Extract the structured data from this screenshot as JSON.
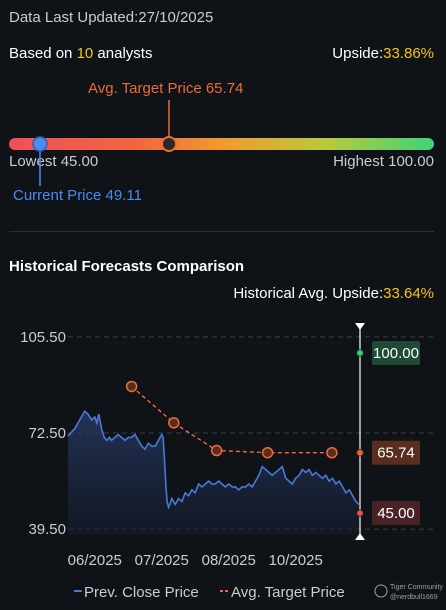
{
  "header": {
    "updated_label": "Data Last Updated:",
    "updated_value": "27/10/2025",
    "based_prefix": "Based on ",
    "analyst_count": "10",
    "based_suffix": " analysts",
    "upside_label": "Upside:",
    "upside_value": "33.86%"
  },
  "range": {
    "avg_target_label": "Avg. Target Price",
    "avg_target_value": "65.74",
    "lowest_label": "Lowest",
    "lowest_value": "45.00",
    "highest_label": "Highest",
    "highest_value": "100.00",
    "current_label": "Current Price",
    "current_value": "49.11",
    "colors": {
      "avg_marker": "#ee6a3a",
      "current_marker": "#4a8cf0"
    }
  },
  "history": {
    "title": "Historical Forecasts Comparison",
    "avg_upside_label": "Historical Avg. Upside:",
    "avg_upside_value": "33.64%"
  },
  "chart_data": {
    "type": "line",
    "title": "Historical Forecasts Comparison",
    "yticks": [
      39.5,
      72.5,
      105.5
    ],
    "ytick_labels": [
      "39.50",
      "72.50",
      "105.50"
    ],
    "ylim": [
      37.5,
      112
    ],
    "xticks": [
      {
        "label": "06/2025",
        "x": 0.0
      },
      {
        "label": "07/2025",
        "x": 1.0
      },
      {
        "label": "08/2025",
        "x": 2.0
      },
      {
        "label": "10/2025",
        "x": 3.0
      }
    ],
    "xlim": [
      -0.4,
      3.96
    ],
    "grid": true,
    "legend": {
      "position": "bottom",
      "entries": [
        "Prev. Close Price",
        "Avg. Target Price"
      ]
    },
    "series": [
      {
        "name": "Prev. Close Price",
        "color": "#4a78d8",
        "x": [
          -0.4,
          -0.3,
          -0.2,
          -0.15,
          -0.1,
          -0.05,
          0.0,
          0.03,
          0.06,
          0.1,
          0.14,
          0.18,
          0.22,
          0.25,
          0.3,
          0.35,
          0.4,
          0.45,
          0.5,
          0.55,
          0.6,
          0.65,
          0.7,
          0.75,
          0.8,
          0.85,
          0.9,
          0.95,
          1.0,
          1.02,
          1.04,
          1.06,
          1.08,
          1.1,
          1.12,
          1.15,
          1.2,
          1.25,
          1.3,
          1.35,
          1.4,
          1.45,
          1.5,
          1.55,
          1.6,
          1.65,
          1.7,
          1.75,
          1.8,
          1.85,
          1.9,
          1.95,
          2.0,
          2.05,
          2.1,
          2.15,
          2.2,
          2.25,
          2.3,
          2.35,
          2.4,
          2.45,
          2.5,
          2.55,
          2.6,
          2.65,
          2.7,
          2.75,
          2.8,
          2.85,
          2.9,
          2.95,
          3.0,
          3.05,
          3.1,
          3.15,
          3.2,
          3.25,
          3.3,
          3.35,
          3.4,
          3.45,
          3.5,
          3.55,
          3.6,
          3.65,
          3.7,
          3.75,
          3.8,
          3.85,
          3.9,
          3.94
        ],
        "values": [
          71.5,
          74,
          78,
          80,
          79,
          77,
          78,
          76,
          79,
          74,
          71,
          70,
          71,
          70,
          71,
          72,
          71,
          70,
          71,
          71,
          72,
          70,
          68,
          67,
          69,
          68,
          68,
          70,
          72,
          71,
          64,
          55,
          49,
          47,
          48,
          50,
          48,
          50,
          49,
          52,
          51,
          53,
          52,
          55,
          54,
          55,
          56,
          55,
          55,
          56,
          55,
          54,
          55,
          54,
          54,
          53,
          54,
          54,
          55,
          54,
          56,
          58,
          61,
          60,
          59,
          58,
          59,
          60,
          61,
          57,
          56,
          55,
          57,
          58,
          60,
          59,
          60,
          58,
          59,
          58,
          57,
          58,
          56,
          57,
          55,
          56,
          54,
          52,
          53,
          51,
          49,
          48
        ]
      },
      {
        "name": "Avg. Target Price",
        "color": "#ee6a3a",
        "x": [
          0.55,
          1.18,
          1.82,
          2.58,
          3.54
        ],
        "values": [
          88.5,
          76.0,
          66.5,
          65.74,
          65.74
        ]
      }
    ],
    "end_markers": [
      {
        "value": 100.0,
        "label": "100.00",
        "color": "#3ed37a",
        "bg": "#1e4a36"
      },
      {
        "value": 65.74,
        "label": "65.74",
        "color": "#ee6a3a",
        "bg": "#5a2e1e"
      },
      {
        "value": 45.0,
        "label": "45.00",
        "color": "#f0505a",
        "bg": "#4a2226"
      }
    ]
  },
  "watermark": {
    "line1": "Tiger Community",
    "line2": "@nerdbull1669"
  }
}
